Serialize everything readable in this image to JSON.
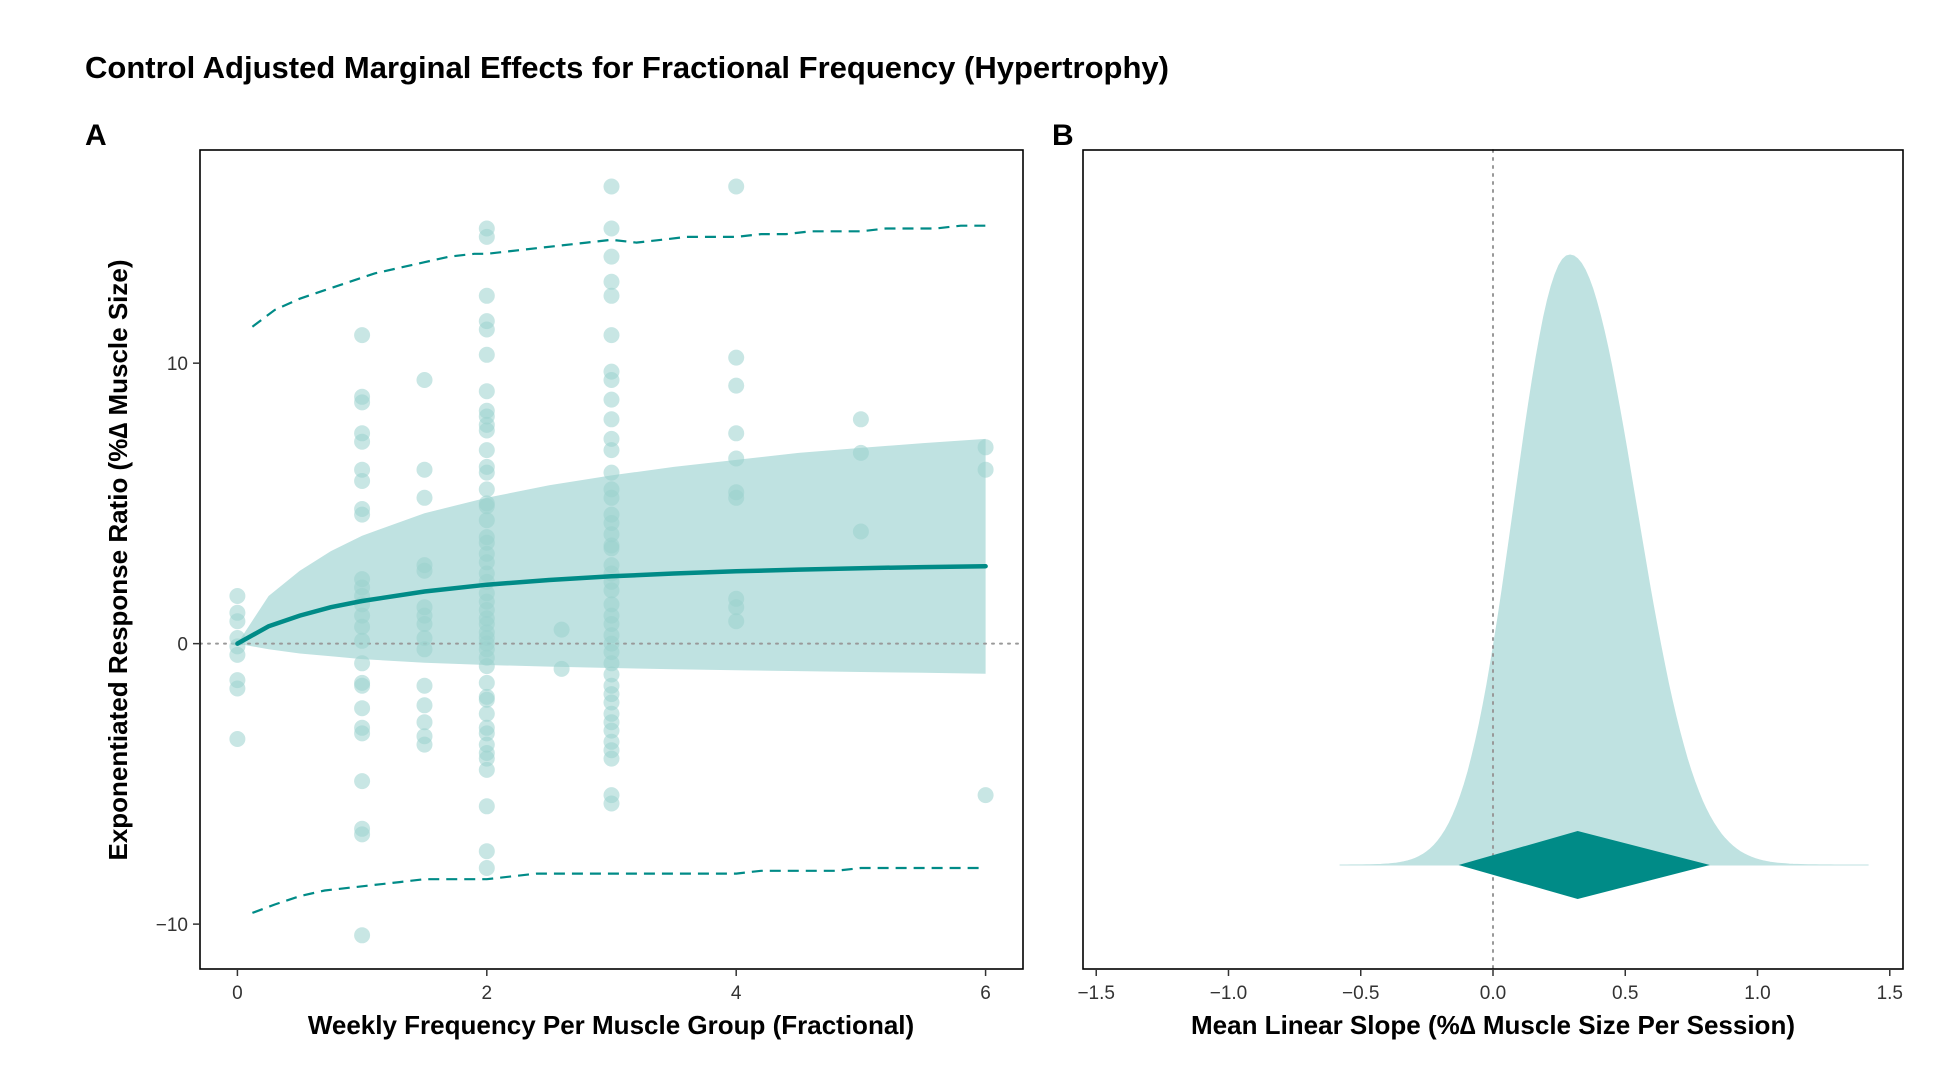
{
  "title": "Control Adjusted Marginal Effects for Fractional Frequency (Hypertrophy)",
  "colors": {
    "teal": "#008b87",
    "band": "#bfe2e1",
    "point": "#9bd2ce",
    "reference": "#999999"
  },
  "chart_data": [
    {
      "panel": "A",
      "type": "scatter",
      "xlabel": "Weekly Frequency Per Muscle Group (Fractional)",
      "ylabel": "Exponentiated Response Ratio (%∆ Muscle Size)",
      "xlim": [
        -0.3,
        6.3
      ],
      "ylim": [
        -11.6,
        17.6
      ],
      "xticks": [
        0,
        2,
        4,
        6
      ],
      "yticks": [
        -10,
        0,
        10
      ],
      "ytick_labels": [
        "−10",
        "0",
        "10"
      ],
      "reference_line_y": 0,
      "grid": false,
      "series": [
        {
          "kind": "points",
          "points": [
            [
              0,
              1.7
            ],
            [
              0,
              1.1
            ],
            [
              0,
              0.8
            ],
            [
              0,
              0.2
            ],
            [
              0,
              -0.1
            ],
            [
              0,
              -0.4
            ],
            [
              0,
              -1.3
            ],
            [
              0,
              -1.6
            ],
            [
              0,
              -3.4
            ],
            [
              1,
              11.0
            ],
            [
              1,
              8.8
            ],
            [
              1,
              8.6
            ],
            [
              1,
              7.5
            ],
            [
              1,
              7.2
            ],
            [
              1,
              6.2
            ],
            [
              1,
              5.8
            ],
            [
              1,
              4.8
            ],
            [
              1,
              4.6
            ],
            [
              1,
              2.3
            ],
            [
              1,
              2.0
            ],
            [
              1,
              1.7
            ],
            [
              1,
              1.4
            ],
            [
              1,
              1.0
            ],
            [
              1,
              0.6
            ],
            [
              1,
              0.1
            ],
            [
              1,
              -0.7
            ],
            [
              1,
              -1.4
            ],
            [
              1,
              -1.5
            ],
            [
              1,
              -2.3
            ],
            [
              1,
              -3.0
            ],
            [
              1,
              -3.2
            ],
            [
              1,
              -4.9
            ],
            [
              1,
              -6.6
            ],
            [
              1,
              -6.8
            ],
            [
              1,
              -10.4
            ],
            [
              1.5,
              9.4
            ],
            [
              1.5,
              6.2
            ],
            [
              1.5,
              5.2
            ],
            [
              1.5,
              2.8
            ],
            [
              1.5,
              2.6
            ],
            [
              1.5,
              1.3
            ],
            [
              1.5,
              1.0
            ],
            [
              1.5,
              0.7
            ],
            [
              1.5,
              0.2
            ],
            [
              1.5,
              -0.2
            ],
            [
              1.5,
              -1.5
            ],
            [
              1.5,
              -2.2
            ],
            [
              1.5,
              -2.8
            ],
            [
              1.5,
              -3.3
            ],
            [
              1.5,
              -3.6
            ],
            [
              2,
              14.8
            ],
            [
              2,
              14.5
            ],
            [
              2,
              12.4
            ],
            [
              2,
              11.5
            ],
            [
              2,
              11.2
            ],
            [
              2,
              10.3
            ],
            [
              2,
              9.0
            ],
            [
              2,
              8.3
            ],
            [
              2,
              8.1
            ],
            [
              2,
              7.8
            ],
            [
              2,
              7.6
            ],
            [
              2,
              6.9
            ],
            [
              2,
              6.3
            ],
            [
              2,
              6.1
            ],
            [
              2,
              5.5
            ],
            [
              2,
              5.0
            ],
            [
              2,
              4.9
            ],
            [
              2,
              4.4
            ],
            [
              2,
              3.8
            ],
            [
              2,
              3.6
            ],
            [
              2,
              3.2
            ],
            [
              2,
              2.9
            ],
            [
              2,
              2.5
            ],
            [
              2,
              2.2
            ],
            [
              2,
              1.8
            ],
            [
              2,
              1.5
            ],
            [
              2,
              1.2
            ],
            [
              2,
              0.9
            ],
            [
              2,
              0.7
            ],
            [
              2,
              0.4
            ],
            [
              2,
              0.2
            ],
            [
              2,
              0.0
            ],
            [
              2,
              -0.2
            ],
            [
              2,
              -0.5
            ],
            [
              2,
              -0.8
            ],
            [
              2,
              -1.4
            ],
            [
              2,
              -1.9
            ],
            [
              2,
              -2.0
            ],
            [
              2,
              -2.5
            ],
            [
              2,
              -3.0
            ],
            [
              2,
              -3.2
            ],
            [
              2,
              -3.6
            ],
            [
              2,
              -3.9
            ],
            [
              2,
              -4.1
            ],
            [
              2,
              -4.5
            ],
            [
              2,
              -5.8
            ],
            [
              2,
              -7.4
            ],
            [
              2,
              -8.0
            ],
            [
              2.6,
              0.5
            ],
            [
              2.6,
              -0.9
            ],
            [
              3,
              16.3
            ],
            [
              3,
              14.8
            ],
            [
              3,
              13.8
            ],
            [
              3,
              12.9
            ],
            [
              3,
              12.4
            ],
            [
              3,
              11.0
            ],
            [
              3,
              9.7
            ],
            [
              3,
              9.4
            ],
            [
              3,
              8.7
            ],
            [
              3,
              8.0
            ],
            [
              3,
              7.3
            ],
            [
              3,
              6.9
            ],
            [
              3,
              6.1
            ],
            [
              3,
              5.5
            ],
            [
              3,
              5.2
            ],
            [
              3,
              4.6
            ],
            [
              3,
              4.3
            ],
            [
              3,
              3.9
            ],
            [
              3,
              3.5
            ],
            [
              3,
              3.4
            ],
            [
              3,
              2.8
            ],
            [
              3,
              2.5
            ],
            [
              3,
              2.2
            ],
            [
              3,
              1.9
            ],
            [
              3,
              1.4
            ],
            [
              3,
              1.0
            ],
            [
              3,
              0.7
            ],
            [
              3,
              0.3
            ],
            [
              3,
              0.0
            ],
            [
              3,
              -0.3
            ],
            [
              3,
              -0.7
            ],
            [
              3,
              -1.1
            ],
            [
              3,
              -1.5
            ],
            [
              3,
              -1.8
            ],
            [
              3,
              -2.1
            ],
            [
              3,
              -2.5
            ],
            [
              3,
              -2.8
            ],
            [
              3,
              -3.1
            ],
            [
              3,
              -3.5
            ],
            [
              3,
              -3.8
            ],
            [
              3,
              -4.1
            ],
            [
              3,
              -5.4
            ],
            [
              3,
              -5.7
            ],
            [
              4,
              16.3
            ],
            [
              4,
              10.2
            ],
            [
              4,
              9.2
            ],
            [
              4,
              7.5
            ],
            [
              4,
              6.6
            ],
            [
              4,
              5.4
            ],
            [
              4,
              5.2
            ],
            [
              4,
              1.6
            ],
            [
              4,
              1.3
            ],
            [
              4,
              0.8
            ],
            [
              5,
              8.0
            ],
            [
              5,
              6.8
            ],
            [
              5,
              4.0
            ],
            [
              6,
              7.0
            ],
            [
              6,
              6.2
            ],
            [
              6,
              -5.4
            ]
          ]
        },
        {
          "kind": "fit_line",
          "x": [
            0,
            0.25,
            0.5,
            0.75,
            1,
            1.5,
            2,
            2.5,
            3,
            3.5,
            4,
            4.5,
            5,
            5.5,
            6
          ],
          "y": [
            0,
            0.62,
            1.0,
            1.3,
            1.52,
            1.86,
            2.1,
            2.27,
            2.4,
            2.5,
            2.58,
            2.64,
            2.69,
            2.73,
            2.76
          ]
        },
        {
          "kind": "ribbon",
          "x": [
            0,
            0.25,
            0.5,
            0.75,
            1,
            1.5,
            2,
            2.5,
            3,
            3.5,
            4,
            4.5,
            5,
            5.5,
            6
          ],
          "lower": [
            0,
            -0.2,
            -0.35,
            -0.45,
            -0.55,
            -0.68,
            -0.76,
            -0.82,
            -0.87,
            -0.91,
            -0.95,
            -0.98,
            -1.01,
            -1.04,
            -1.07
          ],
          "upper": [
            0,
            1.7,
            2.6,
            3.3,
            3.85,
            4.65,
            5.2,
            5.65,
            6.0,
            6.3,
            6.55,
            6.8,
            6.98,
            7.15,
            7.3
          ]
        },
        {
          "kind": "dashed_upper",
          "x": [
            0.12,
            0.3,
            0.5,
            0.7,
            0.9,
            1.1,
            1.3,
            1.5,
            1.7,
            1.9,
            2.0,
            2.2,
            2.4,
            2.6,
            2.8,
            3.0,
            3.2,
            3.4,
            3.6,
            3.8,
            4.0,
            4.2,
            4.4,
            4.6,
            4.8,
            5.0,
            5.2,
            5.4,
            5.6,
            5.8,
            6.0
          ],
          "y": [
            11.3,
            11.9,
            12.3,
            12.6,
            12.9,
            13.2,
            13.4,
            13.6,
            13.8,
            13.9,
            13.9,
            14.0,
            14.1,
            14.2,
            14.3,
            14.4,
            14.3,
            14.4,
            14.5,
            14.5,
            14.5,
            14.6,
            14.6,
            14.7,
            14.7,
            14.7,
            14.8,
            14.8,
            14.8,
            14.9,
            14.9
          ]
        },
        {
          "kind": "dashed_lower",
          "x": [
            0.12,
            0.3,
            0.5,
            0.7,
            0.9,
            1.1,
            1.3,
            1.5,
            1.7,
            1.9,
            2.0,
            2.2,
            2.4,
            2.6,
            2.8,
            3.0,
            3.2,
            3.4,
            3.6,
            3.8,
            4.0,
            4.2,
            4.4,
            4.6,
            4.8,
            5.0,
            5.2,
            5.4,
            5.6,
            5.8,
            6.0
          ],
          "y": [
            -9.6,
            -9.3,
            -9.0,
            -8.8,
            -8.7,
            -8.6,
            -8.5,
            -8.4,
            -8.4,
            -8.4,
            -8.4,
            -8.3,
            -8.2,
            -8.2,
            -8.2,
            -8.2,
            -8.2,
            -8.2,
            -8.2,
            -8.2,
            -8.2,
            -8.1,
            -8.1,
            -8.1,
            -8.1,
            -8.0,
            -8.0,
            -8.0,
            -8.0,
            -8.0,
            -8.0
          ]
        }
      ]
    },
    {
      "panel": "B",
      "type": "area",
      "xlabel": "Mean Linear Slope (%∆ Muscle Size Per Session)",
      "ylabel": "",
      "xlim": [
        -1.55,
        1.55
      ],
      "xticks": [
        -1.5,
        -1.0,
        -0.5,
        0.0,
        0.5,
        1.0,
        1.5
      ],
      "xtick_labels": [
        "−1.5",
        "−1.0",
        "−0.5",
        "0.0",
        "0.5",
        "1.0",
        "1.5"
      ],
      "reference_line_x": 0,
      "grid": false,
      "density_mode": 0.29,
      "density_range": [
        -0.58,
        1.42
      ],
      "interval": {
        "lower": -0.13,
        "point": 0.32,
        "upper": 0.82
      }
    }
  ]
}
